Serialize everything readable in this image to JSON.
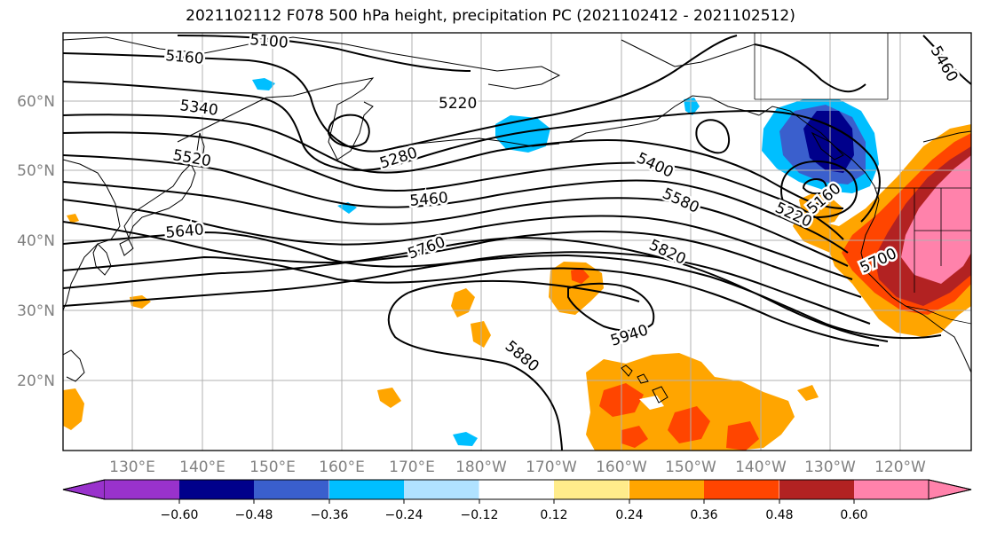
{
  "title": "2021102112 F078 500 hPa height, precipitation PC (2021102412 - 2021102512)",
  "lat_labels": [
    "60°N",
    "50°N",
    "40°N",
    "30°N",
    "20°N"
  ],
  "lon_labels": [
    "130°E",
    "140°E",
    "150°E",
    "160°E",
    "170°E",
    "180°W",
    "170°W",
    "160°W",
    "150°W",
    "140°W",
    "130°W",
    "120°W"
  ],
  "colorbar": {
    "colors": [
      "#9932cc",
      "#00008b",
      "#3a5fcd",
      "#00bfff",
      "#b0e2ff",
      "#ffffff",
      "#ffec8b",
      "#ffa500",
      "#ff4500",
      "#b22222",
      "#ff82ab"
    ],
    "tick_labels": [
      "−0.60",
      "−0.48",
      "−0.36",
      "−0.24",
      "−0.12",
      "0.12",
      "0.24",
      "0.36",
      "0.48",
      "0.60"
    ]
  },
  "contour_labels": [
    "5100",
    "5160",
    "5220",
    "5340",
    "5520",
    "5280",
    "5460",
    "5400",
    "5580",
    "5220",
    "5160",
    "5640",
    "5760",
    "5820",
    "5700",
    "5940",
    "5880",
    "5460"
  ]
}
